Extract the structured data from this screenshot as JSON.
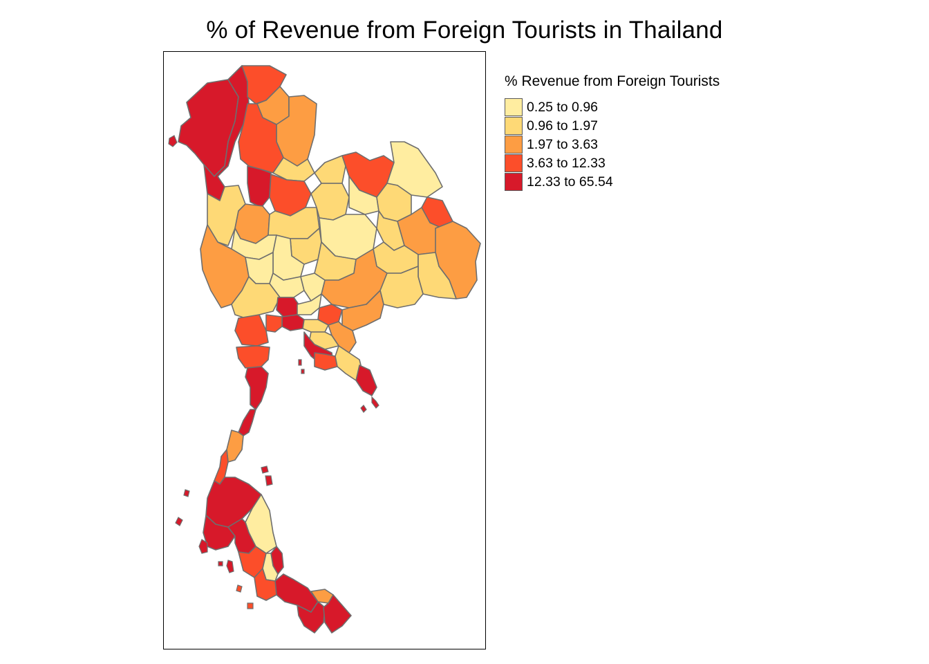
{
  "title": "% of Revenue from Foreign Tourists in Thailand",
  "legend": {
    "title": "% Revenue from Foreign Tourists",
    "items": [
      {
        "label": "0.25 to 0.96",
        "color": "#FFEDA0"
      },
      {
        "label": "0.96 to 1.97",
        "color": "#FED976"
      },
      {
        "label": "1.97 to 3.63",
        "color": "#FD9D43"
      },
      {
        "label": "3.63 to 12.33",
        "color": "#FC4E2A"
      },
      {
        "label": "12.33 to 65.54",
        "color": "#D7192A"
      }
    ]
  },
  "colors": {
    "border": "#6e6e6e",
    "frame": "#000000"
  }
}
